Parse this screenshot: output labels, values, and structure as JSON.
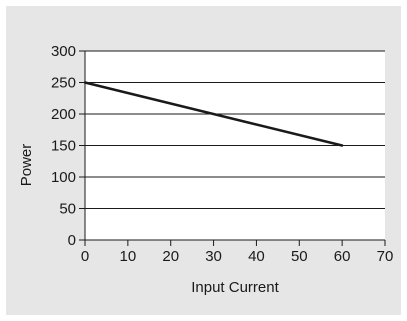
{
  "chart_data": {
    "type": "line",
    "title": "",
    "xlabel": "Input Current",
    "ylabel": "Power",
    "xlim": [
      0,
      70
    ],
    "ylim": [
      0,
      300
    ],
    "xticks": [
      0,
      10,
      20,
      30,
      40,
      50,
      60,
      70
    ],
    "yticks": [
      0,
      50,
      100,
      150,
      200,
      250,
      300
    ],
    "grid": "horizontal",
    "legend": "none",
    "series": [
      {
        "x": [
          0,
          60
        ],
        "y": [
          250,
          150
        ],
        "color": "#1a1a1a"
      }
    ],
    "colors": {
      "background": "#e6e6e6",
      "plot_area": "#ffffff",
      "gridline": "#1a1a1a",
      "line": "#1a1a1a"
    }
  }
}
